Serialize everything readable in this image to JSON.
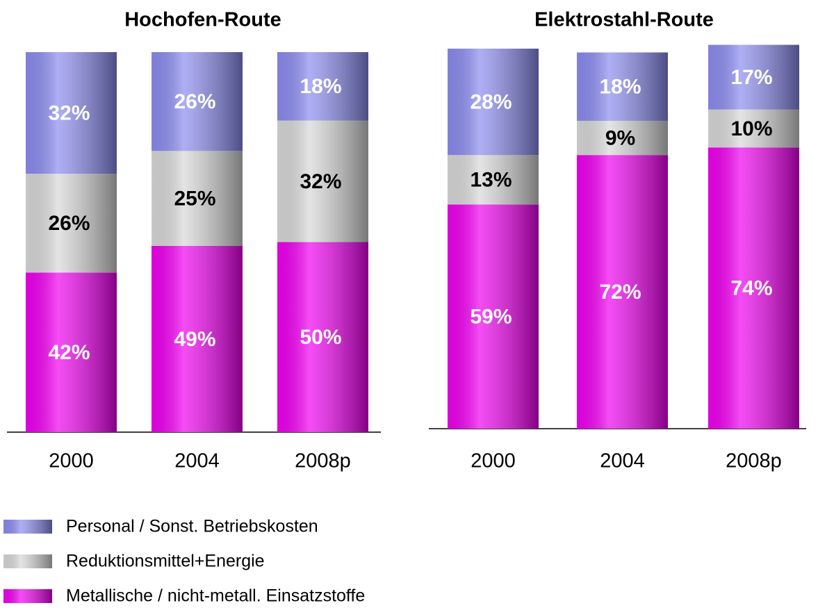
{
  "chart_data": [
    {
      "type": "stacked-bar",
      "title": "Hochofen-Route",
      "categories": [
        "2000",
        "2004",
        "2008p"
      ],
      "series": [
        {
          "values": [
            32,
            26,
            18
          ],
          "value_labels": [
            "32%",
            "26%",
            "18%"
          ]
        },
        {
          "values": [
            26,
            25,
            32
          ],
          "value_labels": [
            "26%",
            "25%",
            "32%"
          ]
        },
        {
          "values": [
            42,
            49,
            50
          ],
          "value_labels": [
            "42%",
            "49%",
            "50%"
          ]
        }
      ]
    },
    {
      "type": "stacked-bar",
      "title": "Elektrostahl-Route",
      "categories": [
        "2000",
        "2004",
        "2008p"
      ],
      "series": [
        {
          "values": [
            28,
            18,
            17
          ],
          "value_labels": [
            "28%",
            "18%",
            "17%"
          ]
        },
        {
          "values": [
            13,
            9,
            10
          ],
          "value_labels": [
            "13%",
            "9%",
            "10%"
          ]
        },
        {
          "values": [
            59,
            72,
            74
          ],
          "value_labels": [
            "59%",
            "72%",
            "74%"
          ]
        }
      ]
    }
  ],
  "legend": [
    {
      "name": "Personal / Sonst. Betriebskosten",
      "color": "#8c8cf0",
      "label_color": "#ffffff"
    },
    {
      "name": "Reduktionsmittel+Energie",
      "color": "#d8d8d8",
      "label_color": "#000000"
    },
    {
      "name": "Metallische / nicht-metall. Einsatzstoffe",
      "color": "#f000f0",
      "label_color": "#ffffff"
    }
  ]
}
